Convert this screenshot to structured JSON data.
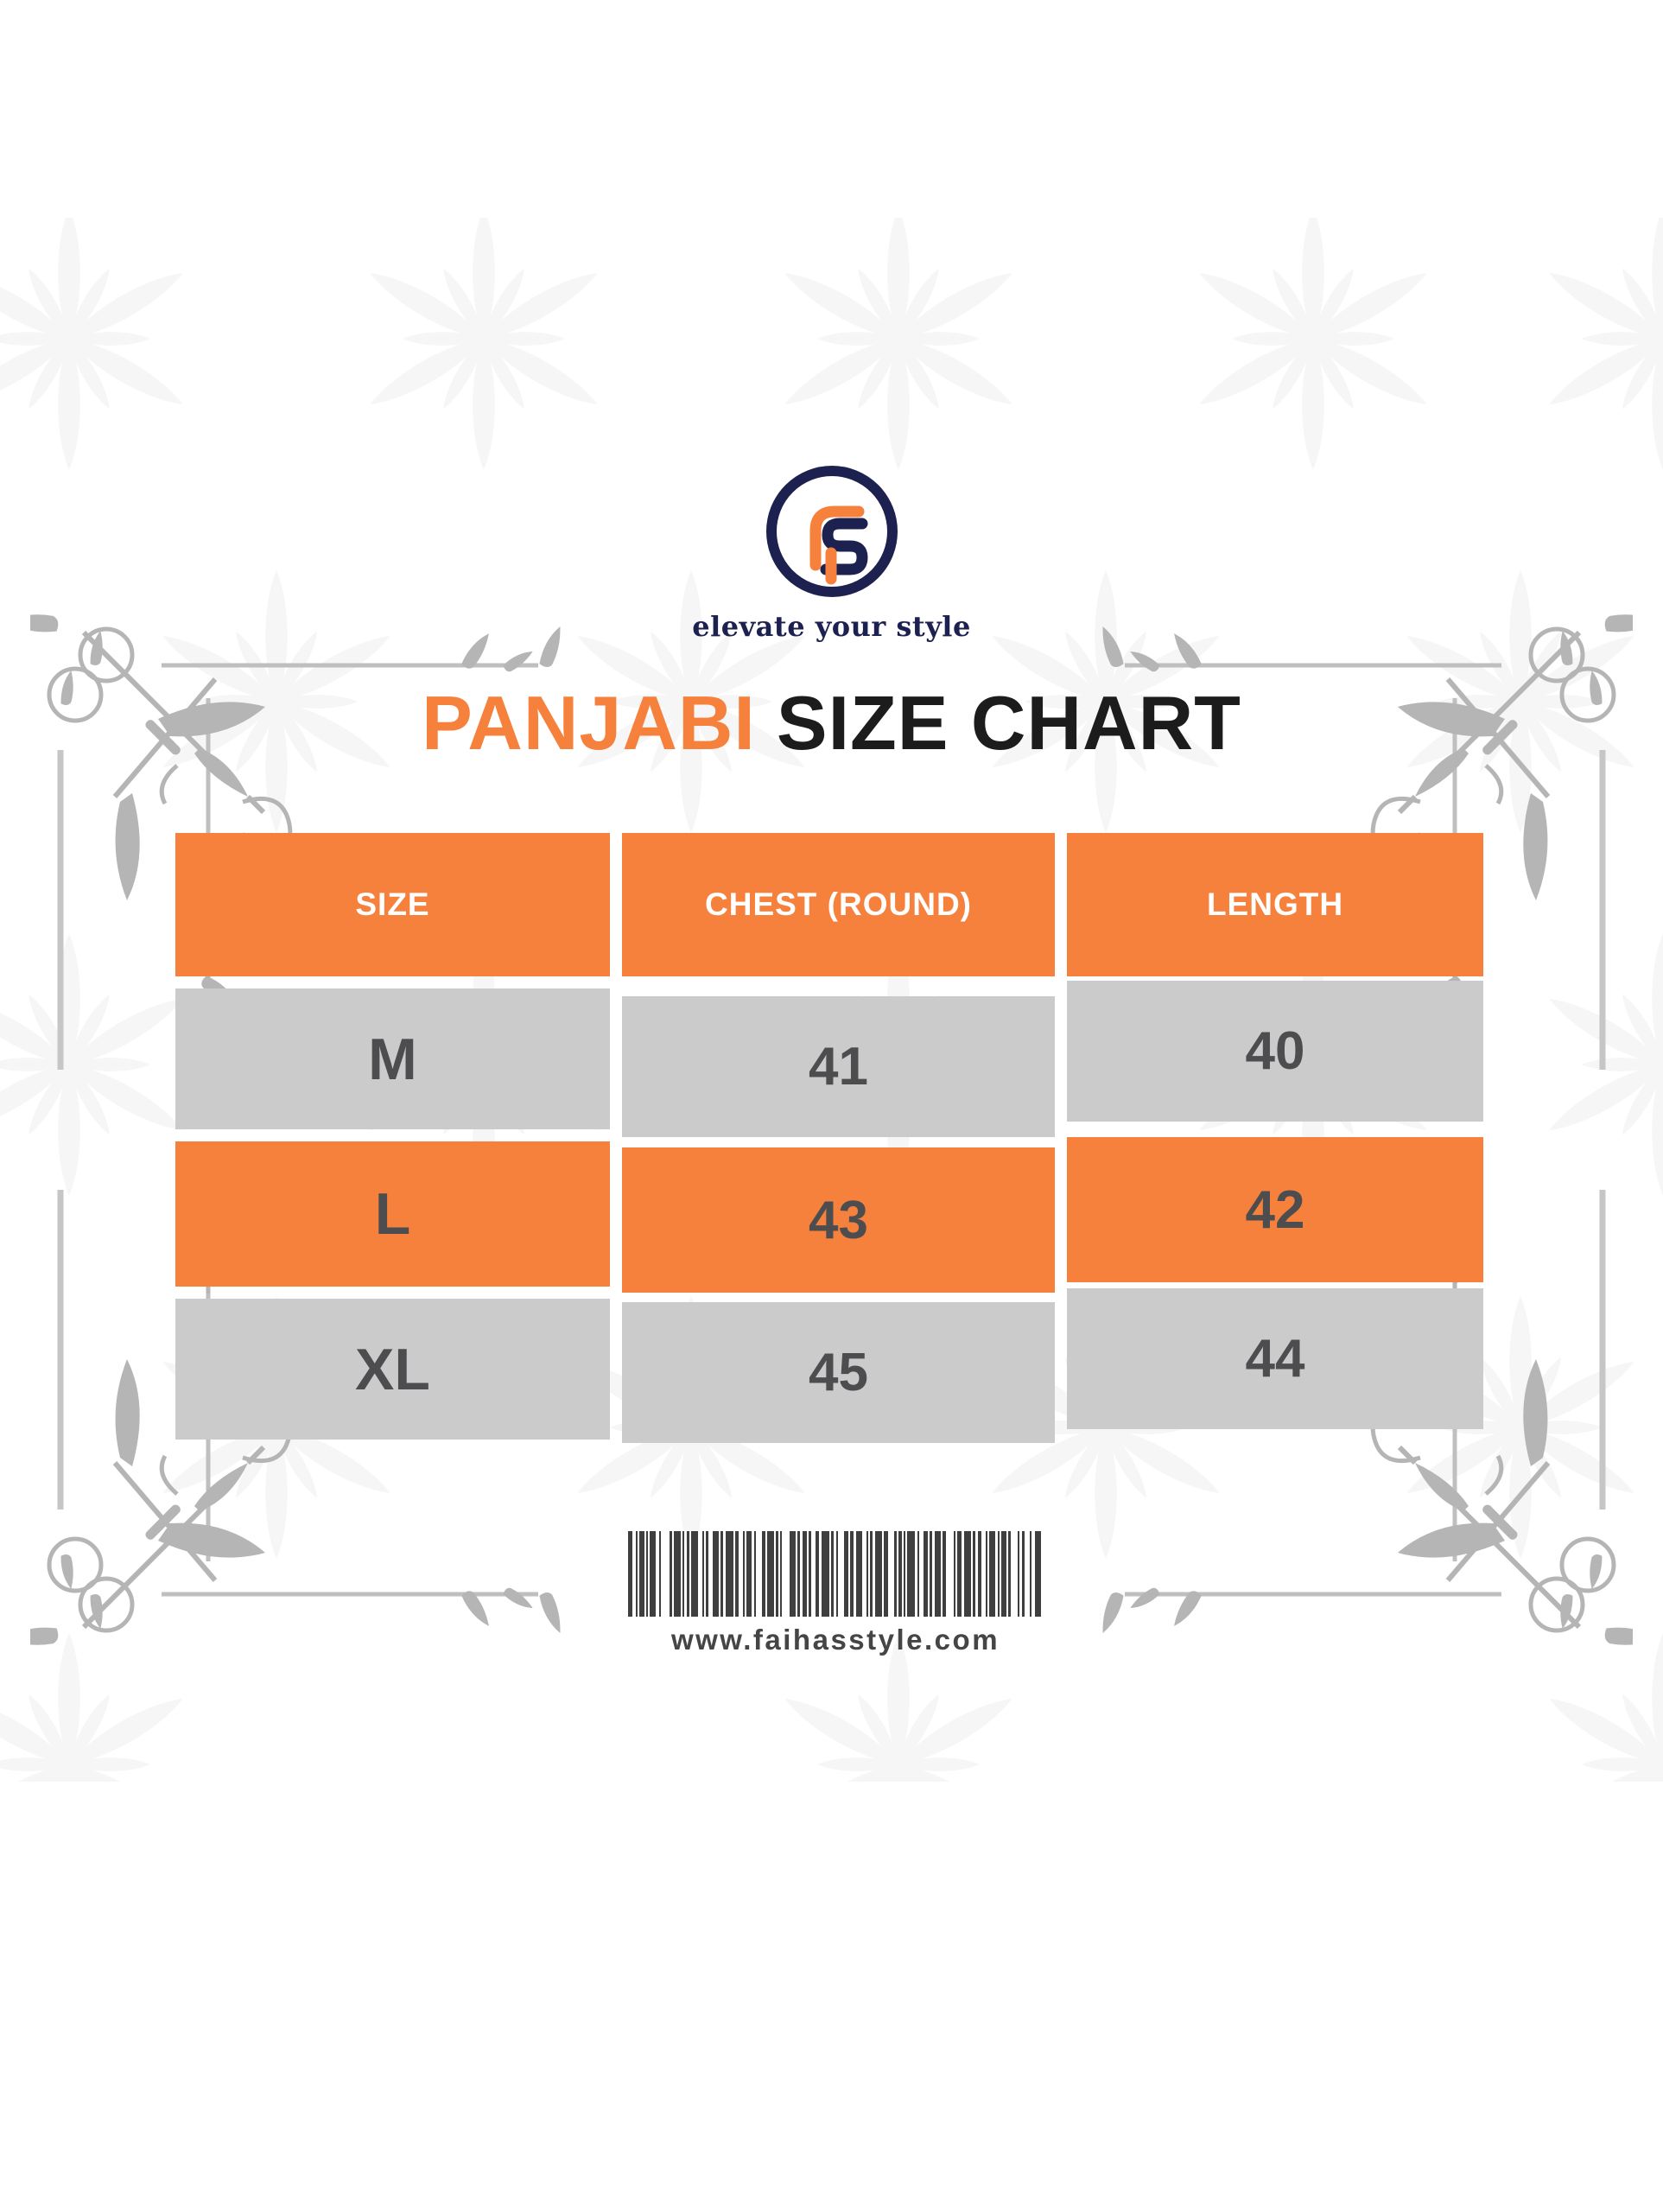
{
  "logo": {
    "monogram_icon": "fs-monogram-icon",
    "tagline": "elevate your style",
    "colors": {
      "navy": "#1d2150",
      "orange": "#f6813c"
    }
  },
  "title": {
    "highlight": "PANJABI",
    "rest": "SIZE CHART"
  },
  "table": {
    "headers": [
      "SIZE",
      "CHEST (ROUND)",
      "LENGTH"
    ],
    "rows": [
      {
        "size": "M",
        "chest": "41",
        "length": "40",
        "variant": "gray"
      },
      {
        "size": "L",
        "chest": "43",
        "length": "42",
        "variant": "orange"
      },
      {
        "size": "XL",
        "chest": "45",
        "length": "44",
        "variant": "gray"
      }
    ],
    "colors": {
      "header_bg": "#f6813c",
      "row_gray_bg": "#cbcbcb",
      "row_orange_bg": "#f6813c",
      "header_text": "#ffffff",
      "cell_text": "#4d4d50"
    }
  },
  "footer": {
    "website": "www.faihasstyle.com",
    "barcode_icon": "barcode-icon",
    "barcode_bars": [
      5,
      4,
      2,
      2,
      6,
      2,
      2,
      2,
      7,
      4,
      2,
      10,
      3,
      2,
      8,
      2,
      2,
      3,
      3,
      2,
      8,
      5,
      2,
      2,
      3,
      5,
      7,
      2,
      3,
      3,
      9,
      2,
      4,
      5,
      2,
      2,
      6,
      3,
      2,
      7,
      4,
      2,
      8,
      2,
      3,
      2,
      2,
      9,
      7,
      2,
      3,
      3,
      5,
      2,
      3,
      5,
      4,
      3,
      9,
      2,
      3,
      3,
      2,
      7,
      5,
      2,
      4,
      3,
      7,
      5,
      2,
      2,
      3,
      3,
      8,
      2,
      5,
      7,
      3,
      2,
      4,
      2,
      2,
      2,
      9,
      3,
      2,
      5,
      5,
      2,
      3,
      3,
      7,
      2,
      4,
      9,
      2,
      2,
      5,
      3,
      8,
      2,
      3,
      3,
      4,
      5,
      2,
      2,
      7,
      3,
      2,
      2,
      6,
      2,
      3,
      8,
      2,
      3,
      3,
      6,
      2,
      4,
      7
    ]
  }
}
